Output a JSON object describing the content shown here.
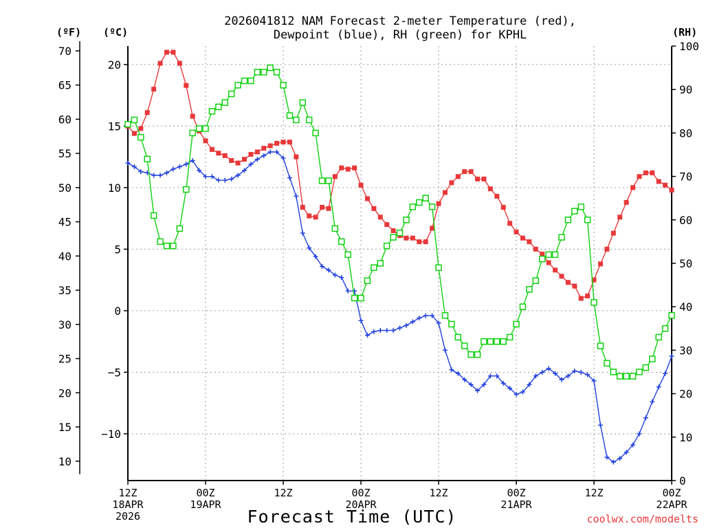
{
  "title_line1": "2026041812 NAM Forecast 2-meter Temperature (red),",
  "title_line2": "Dewpoint (blue), RH (green) for KPHL",
  "unit_f": "(ºF)",
  "unit_c": "(ºC)",
  "unit_rh": "(RH)",
  "xlabel": "Forecast Time (UTC)",
  "credit": "coolwx.com/modelts",
  "colors": {
    "temperature": "#e8383a",
    "dewpoint": "#2040e0",
    "rh": "#10d010",
    "grid": "#9a9a9a"
  },
  "chart_data": {
    "type": "line",
    "x": {
      "unit": "forecast hour",
      "range": [
        0,
        84
      ],
      "ticks": [
        {
          "hour": 0,
          "lines": [
            "12Z",
            "18APR",
            "2026"
          ]
        },
        {
          "hour": 12,
          "lines": [
            "00Z",
            "19APR"
          ]
        },
        {
          "hour": 24,
          "lines": [
            "12Z"
          ]
        },
        {
          "hour": 36,
          "lines": [
            "00Z",
            "20APR"
          ]
        },
        {
          "hour": 48,
          "lines": [
            "12Z"
          ]
        },
        {
          "hour": 60,
          "lines": [
            "00Z",
            "21APR"
          ]
        },
        {
          "hour": 72,
          "lines": [
            "12Z"
          ]
        },
        {
          "hour": 84,
          "lines": [
            "00Z",
            "22APR"
          ]
        }
      ]
    },
    "y_celsius": {
      "range": [
        -13.8,
        21.5
      ],
      "ticks": [
        20,
        15,
        10,
        5,
        0,
        -5,
        -10
      ],
      "tick_labels": [
        "20",
        "15",
        "10",
        "5",
        "0",
        "−5",
        "−10"
      ]
    },
    "y_fahrenheit": {
      "ticks": [
        70,
        65,
        60,
        55,
        50,
        45,
        40,
        35,
        30,
        25,
        20,
        15,
        10
      ]
    },
    "y_rh": {
      "range": [
        0,
        100
      ],
      "ticks": [
        100,
        90,
        80,
        70,
        60,
        50,
        40,
        30,
        20,
        10,
        0
      ]
    },
    "series": [
      {
        "name": "Temperature",
        "axis": "celsius",
        "marker": "filled-square",
        "values": [
          [
            0,
            15.0
          ],
          [
            1,
            14.4
          ],
          [
            2,
            14.8
          ],
          [
            3,
            16.1
          ],
          [
            4,
            18.0
          ],
          [
            5,
            20.1
          ],
          [
            6,
            21.0
          ],
          [
            7,
            21.0
          ],
          [
            8,
            20.1
          ],
          [
            9,
            18.3
          ],
          [
            10,
            15.8
          ],
          [
            11,
            14.6
          ],
          [
            12,
            13.8
          ],
          [
            13,
            13.1
          ],
          [
            14,
            12.8
          ],
          [
            15,
            12.6
          ],
          [
            16,
            12.2
          ],
          [
            17,
            12.0
          ],
          [
            18,
            12.3
          ],
          [
            19,
            12.7
          ],
          [
            20,
            12.9
          ],
          [
            21,
            13.2
          ],
          [
            22,
            13.4
          ],
          [
            23,
            13.6
          ],
          [
            24,
            13.7
          ],
          [
            25,
            13.7
          ],
          [
            26,
            12.5
          ],
          [
            27,
            8.4
          ],
          [
            28,
            7.7
          ],
          [
            29,
            7.6
          ],
          [
            30,
            8.4
          ],
          [
            31,
            8.3
          ],
          [
            32,
            10.9
          ],
          [
            33,
            11.6
          ],
          [
            34,
            11.5
          ],
          [
            35,
            11.6
          ],
          [
            36,
            10.2
          ],
          [
            37,
            9.1
          ],
          [
            38,
            8.3
          ],
          [
            39,
            7.6
          ],
          [
            40,
            7.0
          ],
          [
            41,
            6.5
          ],
          [
            42,
            6.1
          ],
          [
            43,
            5.9
          ],
          [
            44,
            5.9
          ],
          [
            45,
            5.6
          ],
          [
            46,
            5.6
          ],
          [
            47,
            6.7
          ],
          [
            48,
            8.7
          ],
          [
            49,
            9.6
          ],
          [
            50,
            10.4
          ],
          [
            51,
            10.9
          ],
          [
            52,
            11.3
          ],
          [
            53,
            11.3
          ],
          [
            54,
            10.7
          ],
          [
            55,
            10.7
          ],
          [
            56,
            9.9
          ],
          [
            57,
            9.3
          ],
          [
            58,
            8.4
          ],
          [
            59,
            7.1
          ],
          [
            60,
            6.4
          ],
          [
            61,
            5.9
          ],
          [
            62,
            5.6
          ],
          [
            63,
            5.0
          ],
          [
            64,
            4.6
          ],
          [
            65,
            3.9
          ],
          [
            66,
            3.3
          ],
          [
            67,
            2.8
          ],
          [
            68,
            2.3
          ],
          [
            69,
            2.0
          ],
          [
            70,
            1.0
          ],
          [
            71,
            1.2
          ],
          [
            72,
            2.5
          ],
          [
            73,
            3.8
          ],
          [
            74,
            5.0
          ],
          [
            75,
            6.3
          ],
          [
            76,
            7.6
          ],
          [
            77,
            8.8
          ],
          [
            78,
            10.0
          ],
          [
            79,
            10.9
          ],
          [
            80,
            11.2
          ],
          [
            81,
            11.2
          ],
          [
            82,
            10.5
          ],
          [
            83,
            10.2
          ],
          [
            84,
            9.8
          ]
        ]
      },
      {
        "name": "Dewpoint",
        "axis": "celsius",
        "marker": "plus",
        "values": [
          [
            0,
            12.0
          ],
          [
            1,
            11.7
          ],
          [
            2,
            11.3
          ],
          [
            3,
            11.2
          ],
          [
            4,
            11.0
          ],
          [
            5,
            11.0
          ],
          [
            6,
            11.2
          ],
          [
            7,
            11.5
          ],
          [
            8,
            11.7
          ],
          [
            9,
            11.9
          ],
          [
            10,
            12.2
          ],
          [
            11,
            11.4
          ],
          [
            12,
            10.9
          ],
          [
            13,
            10.9
          ],
          [
            14,
            10.6
          ],
          [
            15,
            10.6
          ],
          [
            16,
            10.7
          ],
          [
            17,
            11.0
          ],
          [
            18,
            11.4
          ],
          [
            19,
            11.9
          ],
          [
            20,
            12.3
          ],
          [
            21,
            12.6
          ],
          [
            22,
            12.9
          ],
          [
            23,
            12.9
          ],
          [
            24,
            12.4
          ],
          [
            25,
            10.8
          ],
          [
            26,
            9.3
          ],
          [
            27,
            6.3
          ],
          [
            28,
            5.1
          ],
          [
            29,
            4.4
          ],
          [
            30,
            3.6
          ],
          [
            31,
            3.3
          ],
          [
            32,
            2.9
          ],
          [
            33,
            2.7
          ],
          [
            34,
            1.6
          ],
          [
            35,
            1.6
          ],
          [
            36,
            -0.8
          ],
          [
            37,
            -2.0
          ],
          [
            38,
            -1.7
          ],
          [
            39,
            -1.6
          ],
          [
            40,
            -1.6
          ],
          [
            41,
            -1.6
          ],
          [
            42,
            -1.4
          ],
          [
            43,
            -1.2
          ],
          [
            44,
            -0.9
          ],
          [
            45,
            -0.6
          ],
          [
            46,
            -0.4
          ],
          [
            47,
            -0.4
          ],
          [
            48,
            -1.0
          ],
          [
            49,
            -3.2
          ],
          [
            50,
            -4.8
          ],
          [
            51,
            -5.1
          ],
          [
            52,
            -5.6
          ],
          [
            53,
            -6.0
          ],
          [
            54,
            -6.5
          ],
          [
            55,
            -6.0
          ],
          [
            56,
            -5.3
          ],
          [
            57,
            -5.3
          ],
          [
            58,
            -5.9
          ],
          [
            59,
            -6.3
          ],
          [
            60,
            -6.8
          ],
          [
            61,
            -6.6
          ],
          [
            62,
            -6.0
          ],
          [
            63,
            -5.3
          ],
          [
            64,
            -5.0
          ],
          [
            65,
            -4.7
          ],
          [
            66,
            -5.1
          ],
          [
            67,
            -5.6
          ],
          [
            68,
            -5.3
          ],
          [
            69,
            -4.9
          ],
          [
            70,
            -5.0
          ],
          [
            71,
            -5.2
          ],
          [
            72,
            -5.7
          ],
          [
            73,
            -9.3
          ],
          [
            74,
            -11.9
          ],
          [
            75,
            -12.3
          ],
          [
            76,
            -12.0
          ],
          [
            77,
            -11.5
          ],
          [
            78,
            -10.9
          ],
          [
            79,
            -10.0
          ],
          [
            80,
            -8.7
          ],
          [
            81,
            -7.4
          ],
          [
            82,
            -6.2
          ],
          [
            83,
            -5.1
          ],
          [
            84,
            -3.7
          ]
        ]
      },
      {
        "name": "RH",
        "axis": "rh",
        "marker": "open-square",
        "values": [
          [
            0,
            82
          ],
          [
            1,
            83
          ],
          [
            2,
            79
          ],
          [
            3,
            74
          ],
          [
            4,
            61
          ],
          [
            5,
            55
          ],
          [
            6,
            54
          ],
          [
            7,
            54
          ],
          [
            8,
            58
          ],
          [
            9,
            67
          ],
          [
            10,
            80
          ],
          [
            11,
            81
          ],
          [
            12,
            81
          ],
          [
            13,
            85
          ],
          [
            14,
            86
          ],
          [
            15,
            87
          ],
          [
            16,
            89
          ],
          [
            17,
            91
          ],
          [
            18,
            92
          ],
          [
            19,
            92
          ],
          [
            20,
            94
          ],
          [
            21,
            94
          ],
          [
            22,
            95
          ],
          [
            23,
            94
          ],
          [
            24,
            91
          ],
          [
            25,
            84
          ],
          [
            26,
            83
          ],
          [
            27,
            87
          ],
          [
            28,
            83
          ],
          [
            29,
            80
          ],
          [
            30,
            69
          ],
          [
            31,
            69
          ],
          [
            32,
            58
          ],
          [
            33,
            55
          ],
          [
            34,
            52
          ],
          [
            35,
            42
          ],
          [
            36,
            42
          ],
          [
            37,
            46
          ],
          [
            38,
            49
          ],
          [
            39,
            50
          ],
          [
            40,
            54
          ],
          [
            41,
            56
          ],
          [
            42,
            57
          ],
          [
            43,
            60
          ],
          [
            44,
            63
          ],
          [
            45,
            64
          ],
          [
            46,
            65
          ],
          [
            47,
            63
          ],
          [
            48,
            49
          ],
          [
            49,
            38
          ],
          [
            50,
            36
          ],
          [
            51,
            33
          ],
          [
            52,
            31
          ],
          [
            53,
            29
          ],
          [
            54,
            29
          ],
          [
            55,
            32
          ],
          [
            56,
            32
          ],
          [
            57,
            32
          ],
          [
            58,
            32
          ],
          [
            59,
            33
          ],
          [
            60,
            36
          ],
          [
            61,
            40
          ],
          [
            62,
            44
          ],
          [
            63,
            46
          ],
          [
            64,
            51
          ],
          [
            65,
            52
          ],
          [
            66,
            52
          ],
          [
            67,
            56
          ],
          [
            68,
            60
          ],
          [
            69,
            62
          ],
          [
            70,
            63
          ],
          [
            71,
            60
          ],
          [
            72,
            41
          ],
          [
            73,
            31
          ],
          [
            74,
            27
          ],
          [
            75,
            25
          ],
          [
            76,
            24
          ],
          [
            77,
            24
          ],
          [
            78,
            24
          ],
          [
            79,
            25
          ],
          [
            80,
            26
          ],
          [
            81,
            28
          ],
          [
            82,
            33
          ],
          [
            83,
            35
          ],
          [
            84,
            38
          ]
        ]
      }
    ]
  }
}
